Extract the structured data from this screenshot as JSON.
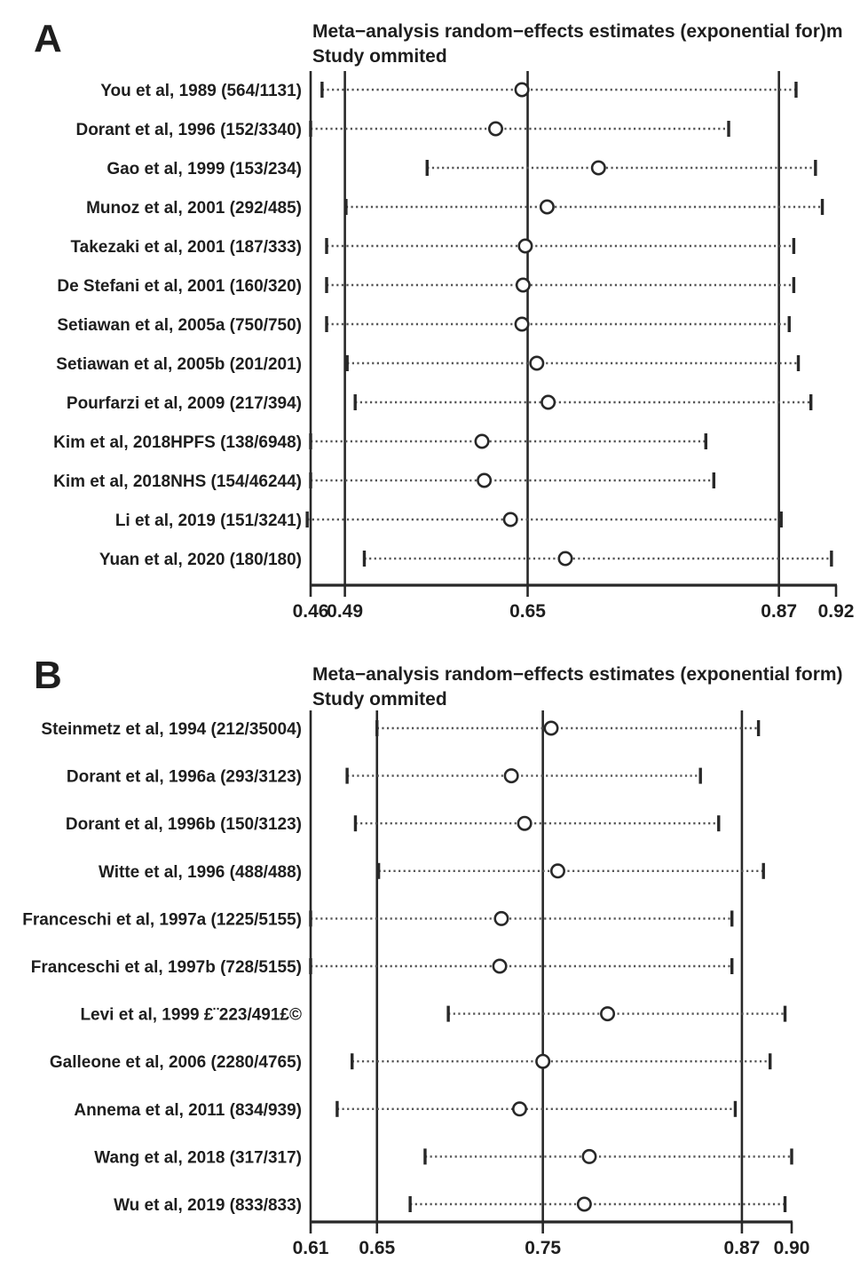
{
  "figure": {
    "background_color": "#ffffff",
    "ink_color": "#282828",
    "dotted_line_color": "#555555",
    "text_color": "#1e1e1e",
    "marker_style": "open-circle"
  },
  "chart_data": [
    {
      "type": "forest",
      "subtype": "leave-one-out sensitivity (meta-analysis influence plot)",
      "panel_letter": "A",
      "title": "Meta−analysis random−effects estimates (exponential for)m",
      "subtitle": "Study ommited",
      "xlim": [
        0.46,
        0.92
      ],
      "x_ticks": [
        0.46,
        0.49,
        0.65,
        0.87,
        0.92
      ],
      "ref_line_values": [
        0.46,
        0.49,
        0.65,
        0.87
      ],
      "overall": {
        "lower_ci": 0.49,
        "estimate": 0.65,
        "upper_ci": 0.87
      },
      "grid": false,
      "legend": false,
      "studies": [
        {
          "label": "You et al, 1989 (564/1131)",
          "lower": 0.47,
          "estimate": 0.645,
          "upper": 0.885
        },
        {
          "label": "Dorant et al, 1996 (152/3340)",
          "lower": 0.46,
          "estimate": 0.622,
          "upper": 0.826
        },
        {
          "label": "Gao et al, 1999 (153/234)",
          "lower": 0.562,
          "estimate": 0.712,
          "upper": 0.902
        },
        {
          "label": "Munoz et al, 2001 (292/485)",
          "lower": 0.491,
          "estimate": 0.667,
          "upper": 0.908
        },
        {
          "label": "Takezaki et al, 2001 (187/333)",
          "lower": 0.474,
          "estimate": 0.648,
          "upper": 0.883
        },
        {
          "label": "De Stefani et al, 2001 (160/320)",
          "lower": 0.474,
          "estimate": 0.646,
          "upper": 0.883
        },
        {
          "label": "Setiawan et al, 2005a (750/750)",
          "lower": 0.474,
          "estimate": 0.645,
          "upper": 0.879
        },
        {
          "label": "Setiawan et al, 2005b (201/201)",
          "lower": 0.492,
          "estimate": 0.658,
          "upper": 0.887
        },
        {
          "label": "Pourfarzi et al, 2009 (217/394)",
          "lower": 0.499,
          "estimate": 0.668,
          "upper": 0.898
        },
        {
          "label": "Kim et al, 2018HPFS (138/6948)",
          "lower": 0.46,
          "estimate": 0.61,
          "upper": 0.806
        },
        {
          "label": "Kim et al, 2018NHS (154/46244)",
          "lower": 0.46,
          "estimate": 0.612,
          "upper": 0.813
        },
        {
          "label": "Li et al, 2019 (151/3241)",
          "lower": 0.457,
          "estimate": 0.635,
          "upper": 0.872
        },
        {
          "label": "Yuan et al, 2020 (180/180)",
          "lower": 0.507,
          "estimate": 0.683,
          "upper": 0.916
        }
      ]
    },
    {
      "type": "forest",
      "subtype": "leave-one-out sensitivity (meta-analysis influence plot)",
      "panel_letter": "B",
      "title": "Meta−analysis random−effects estimates (exponential form)",
      "subtitle": "Study ommited",
      "xlim": [
        0.61,
        0.9
      ],
      "x_ticks": [
        0.61,
        0.65,
        0.75,
        0.87,
        0.9
      ],
      "ref_line_values": [
        0.61,
        0.65,
        0.75,
        0.87
      ],
      "overall": {
        "lower_ci": 0.65,
        "estimate": 0.75,
        "upper_ci": 0.87
      },
      "grid": false,
      "legend": false,
      "studies": [
        {
          "label": "Steinmetz et al, 1994 (212/35004)",
          "lower": 0.65,
          "estimate": 0.755,
          "upper": 0.88
        },
        {
          "label": "Dorant et al, 1996a (293/3123)",
          "lower": 0.632,
          "estimate": 0.731,
          "upper": 0.845
        },
        {
          "label": "Dorant et al, 1996b (150/3123)",
          "lower": 0.637,
          "estimate": 0.739,
          "upper": 0.856
        },
        {
          "label": "Witte et al, 1996 (488/488)",
          "lower": 0.651,
          "estimate": 0.759,
          "upper": 0.883
        },
        {
          "label": "Franceschi et al, 1997a (1225/5155)",
          "lower": 0.61,
          "estimate": 0.725,
          "upper": 0.864
        },
        {
          "label": "Franceschi et al, 1997b (728/5155)",
          "lower": 0.61,
          "estimate": 0.724,
          "upper": 0.864
        },
        {
          "label": "Levi et al, 1999 £¨223/491£©",
          "lower": 0.693,
          "estimate": 0.789,
          "upper": 0.896
        },
        {
          "label": "Galleone et al, 2006 (2280/4765)",
          "lower": 0.635,
          "estimate": 0.75,
          "upper": 0.887
        },
        {
          "label": "Annema et al, 2011 (834/939)",
          "lower": 0.626,
          "estimate": 0.736,
          "upper": 0.866
        },
        {
          "label": "Wang et al, 2018 (317/317)",
          "lower": 0.679,
          "estimate": 0.778,
          "upper": 0.9
        },
        {
          "label": "Wu et al, 2019 (833/833)",
          "lower": 0.67,
          "estimate": 0.775,
          "upper": 0.896
        }
      ]
    }
  ]
}
